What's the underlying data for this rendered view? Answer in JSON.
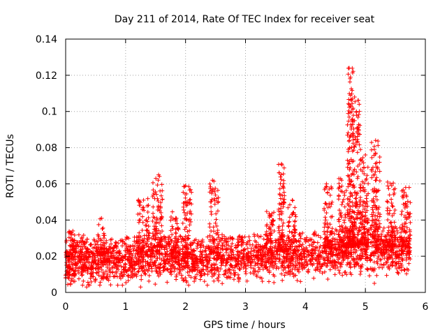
{
  "chart_data": {
    "type": "scatter",
    "title": "Day 211 of 2014, Rate Of TEC Index for receiver seat",
    "xlabel": "GPS time / hours",
    "ylabel": "ROTI / TECUs",
    "xlim": [
      0,
      6
    ],
    "ylim": [
      0,
      0.14
    ],
    "x_ticks": [
      0,
      1,
      2,
      3,
      4,
      5,
      6
    ],
    "x_tick_labels": [
      "0",
      "1",
      "2",
      "3",
      "4",
      "5",
      "6"
    ],
    "y_ticks": [
      0,
      0.02,
      0.04,
      0.06,
      0.08,
      0.1,
      0.12,
      0.14
    ],
    "y_tick_labels": [
      "0",
      "0.02",
      "0.04",
      "0.06",
      "0.08",
      "0.1",
      "0.12",
      "0.14"
    ],
    "grid": true,
    "marker": "+",
    "series": [
      {
        "name": "ROTI",
        "color": "#ff0000",
        "x_range": [
          0.0,
          5.75
        ],
        "baseline_profile": [
          [
            0.0,
            0.015
          ],
          [
            0.5,
            0.016
          ],
          [
            1.0,
            0.017
          ],
          [
            1.5,
            0.019
          ],
          [
            2.0,
            0.017
          ],
          [
            2.5,
            0.017
          ],
          [
            3.0,
            0.018
          ],
          [
            3.5,
            0.019
          ],
          [
            4.0,
            0.019
          ],
          [
            4.5,
            0.021
          ],
          [
            5.0,
            0.022
          ],
          [
            5.5,
            0.022
          ],
          [
            5.75,
            0.022
          ]
        ],
        "bursts": [
          {
            "x_start": 0.0,
            "x_end": 0.15,
            "peak": 0.034
          },
          {
            "x_start": 0.2,
            "x_end": 0.45,
            "peak": 0.032
          },
          {
            "x_start": 0.5,
            "x_end": 0.65,
            "peak": 0.041
          },
          {
            "x_start": 1.2,
            "x_end": 1.4,
            "peak": 0.052
          },
          {
            "x_start": 1.45,
            "x_end": 1.62,
            "peak": 0.065
          },
          {
            "x_start": 1.75,
            "x_end": 1.9,
            "peak": 0.045
          },
          {
            "x_start": 1.95,
            "x_end": 2.1,
            "peak": 0.059
          },
          {
            "x_start": 2.4,
            "x_end": 2.55,
            "peak": 0.062
          },
          {
            "x_start": 3.35,
            "x_end": 3.5,
            "peak": 0.045
          },
          {
            "x_start": 3.55,
            "x_end": 3.65,
            "peak": 0.071
          },
          {
            "x_start": 3.7,
            "x_end": 3.85,
            "peak": 0.051
          },
          {
            "x_start": 4.3,
            "x_end": 4.45,
            "peak": 0.06
          },
          {
            "x_start": 4.55,
            "x_end": 4.7,
            "peak": 0.063
          },
          {
            "x_start": 4.7,
            "x_end": 4.8,
            "peak": 0.124
          },
          {
            "x_start": 4.8,
            "x_end": 4.92,
            "peak": 0.108
          },
          {
            "x_start": 4.92,
            "x_end": 5.05,
            "peak": 0.076
          },
          {
            "x_start": 5.1,
            "x_end": 5.25,
            "peak": 0.084
          },
          {
            "x_start": 5.35,
            "x_end": 5.5,
            "peak": 0.061
          },
          {
            "x_start": 5.6,
            "x_end": 5.75,
            "peak": 0.058
          }
        ],
        "points": [
          [
            0.0,
            0.008
          ],
          [
            0.05,
            0.033
          ],
          [
            0.12,
            0.034
          ],
          [
            0.35,
            0.003
          ],
          [
            0.6,
            0.041
          ],
          [
            1.3,
            0.051
          ],
          [
            1.55,
            0.065
          ],
          [
            2.0,
            0.059
          ],
          [
            2.45,
            0.062
          ],
          [
            3.6,
            0.071
          ],
          [
            3.78,
            0.051
          ],
          [
            4.35,
            0.06
          ],
          [
            4.73,
            0.124
          ],
          [
            4.75,
            0.119
          ],
          [
            4.82,
            0.108
          ],
          [
            4.85,
            0.1
          ],
          [
            4.8,
            0.087
          ],
          [
            4.73,
            0.084
          ],
          [
            5.0,
            0.076
          ],
          [
            5.17,
            0.084
          ],
          [
            5.15,
            0.079
          ],
          [
            4.7,
            0.073
          ],
          [
            4.95,
            0.067
          ],
          [
            5.37,
            0.061
          ],
          [
            5.73,
            0.058
          ],
          [
            5.15,
            0.005
          ],
          [
            1.25,
            0.003
          ]
        ]
      }
    ]
  }
}
